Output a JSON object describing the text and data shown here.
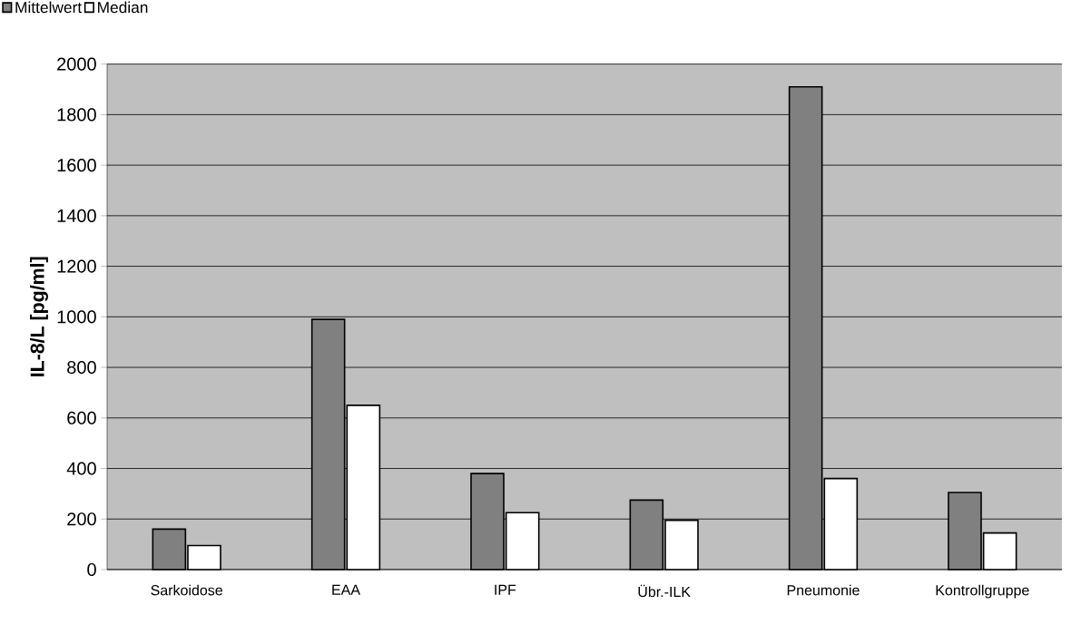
{
  "chart_data": {
    "type": "bar",
    "ylabel": "IL-8/L [pg/ml]",
    "categories": [
      "Sarkoidose",
      "EAA",
      "IPF",
      "Übr.-ILK",
      "Pneumonie",
      "Kontrollgruppe"
    ],
    "series": [
      {
        "name": "Mittelwert",
        "color": "#808080",
        "values": [
          160,
          990,
          380,
          275,
          1910,
          305
        ]
      },
      {
        "name": "Median",
        "color": "#ffffff",
        "values": [
          95,
          650,
          225,
          195,
          360,
          145
        ]
      }
    ],
    "ylim": [
      0,
      2000
    ],
    "yticks": [
      0,
      200,
      400,
      600,
      800,
      1000,
      1200,
      1400,
      1600,
      1800,
      2000
    ],
    "grid": "y",
    "legend": "top left"
  }
}
